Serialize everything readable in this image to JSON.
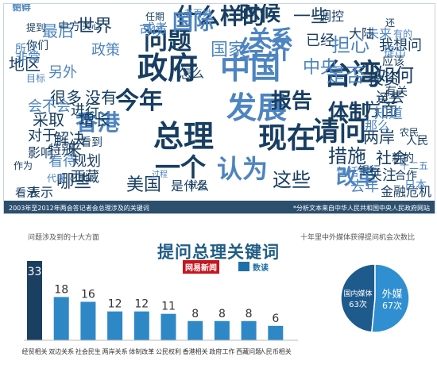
{
  "cloud": {
    "words": [
      {
        "t": "政府",
        "c": "#173e62"
      },
      {
        "t": "中国",
        "c": "#4d84c1"
      },
      {
        "t": "台湾",
        "c": "#173e62"
      },
      {
        "t": "发展",
        "c": "#4d84c1"
      },
      {
        "t": "总理",
        "c": "#173e62"
      },
      {
        "t": "现在",
        "c": "#173e62"
      },
      {
        "t": "今年",
        "c": "#173e62"
      },
      {
        "t": "请问",
        "c": "#173e62"
      },
      {
        "t": "问题",
        "c": "#173e62"
      },
      {
        "t": "经济",
        "c": "#4d84c1"
      },
      {
        "t": "一个",
        "c": "#173e62"
      },
      {
        "t": "认为",
        "c": "#4d84c1"
      },
      {
        "t": "香港",
        "c": "#4d84c1"
      },
      {
        "t": "关系",
        "c": "#4d84c1"
      },
      {
        "t": "什么样的",
        "c": "#173e62"
      },
      {
        "t": "国际",
        "c": "#4d84c1"
      },
      {
        "t": "时候",
        "c": "#173e62"
      },
      {
        "t": "国家",
        "c": "#4d84c1"
      },
      {
        "t": "是否",
        "c": "#4d84c1"
      },
      {
        "t": "如何",
        "c": "#173e62"
      },
      {
        "t": "报告",
        "c": "#173e62"
      },
      {
        "t": "改革",
        "c": "#4d84c1"
      },
      {
        "t": "措施",
        "c": "#173e62"
      },
      {
        "t": "这些",
        "c": "#173e62"
      },
      {
        "t": "方面",
        "c": "#173e62"
      },
      {
        "t": "中央",
        "c": "#4d84c1"
      },
      {
        "t": "两岸",
        "c": "#173e62"
      },
      {
        "t": "社会",
        "c": "#173e62"
      },
      {
        "t": "哪些",
        "c": "#173e62"
      },
      {
        "t": "美国",
        "c": "#173e62"
      },
      {
        "t": "很多",
        "c": "#173e62"
      },
      {
        "t": "没有",
        "c": "#173e62"
      },
      {
        "t": "采取",
        "c": "#173e62"
      },
      {
        "t": "增长",
        "c": "#173e62"
      },
      {
        "t": "解决",
        "c": "#173e62"
      },
      {
        "t": "另外",
        "c": "#4d84c1"
      },
      {
        "t": "世界",
        "c": "#173e62"
      },
      {
        "t": "政策",
        "c": "#4d84c1"
      },
      {
        "t": "我想问",
        "c": "#173e62"
      },
      {
        "t": "体制",
        "c": "#173e62"
      },
      {
        "t": "知道",
        "c": "#4d84c1"
      },
      {
        "t": "西藏",
        "c": "#173e62"
      },
      {
        "t": "看待",
        "c": "#4d84c1"
      },
      {
        "t": "规划",
        "c": "#173e62"
      },
      {
        "t": "进行",
        "c": "#173e62"
      },
      {
        "t": "是什么",
        "c": "#173e62"
      },
      {
        "t": "一些",
        "c": "#173e62"
      },
      {
        "t": "已经",
        "c": "#173e62"
      },
      {
        "t": "怎么",
        "c": "#173e62"
      },
      {
        "t": "地区",
        "c": "#173e62"
      },
      {
        "t": "可以",
        "c": "#4d84c1"
      },
      {
        "t": "就是",
        "c": "#173e62"
      },
      {
        "t": "金融危机",
        "c": "#173e62"
      },
      {
        "t": "投资",
        "c": "#173e62"
      },
      {
        "t": "去年",
        "c": "#4d84c1"
      },
      {
        "t": "人民",
        "c": "#173e62"
      },
      {
        "t": "银行",
        "c": "#173e62"
      },
      {
        "t": "关注",
        "c": "#173e62"
      },
      {
        "t": "过去",
        "c": "#173e62"
      },
      {
        "t": "有关",
        "c": "#173e62"
      },
      {
        "t": "看法",
        "c": "#173e62"
      },
      {
        "t": "表示",
        "c": "#173e62"
      },
      {
        "t": "会不会",
        "c": "#4d84c1"
      },
      {
        "t": "对于",
        "c": "#173e62"
      },
      {
        "t": "影响",
        "c": "#173e62"
      },
      {
        "t": "特别",
        "c": "#173e62"
      },
      {
        "t": "看到",
        "c": "#173e62"
      },
      {
        "t": "来",
        "c": "#173e62"
      },
      {
        "t": "未来",
        "c": "#4d84c1"
      },
      {
        "t": "那么",
        "c": "#4d84c1"
      },
      {
        "t": "新的",
        "c": "#173e62"
      },
      {
        "t": "合作",
        "c": "#173e62"
      },
      {
        "t": "提出",
        "c": "#4d84c1"
      },
      {
        "t": "应该",
        "c": "#173e62"
      },
      {
        "t": "调控",
        "c": "#173e62"
      },
      {
        "t": "大陆",
        "c": "#173e62"
      },
      {
        "t": "关于",
        "c": "#173e62"
      },
      {
        "t": "担心",
        "c": "#4d84c1"
      },
      {
        "t": "非常",
        "c": "#4d84c1"
      },
      {
        "t": "所以",
        "c": "#4d84c1"
      },
      {
        "t": "还",
        "c": "#173e62"
      },
      {
        "t": "有的",
        "c": "#4d84c1"
      },
      {
        "t": "目标",
        "c": "#4d84c1"
      },
      {
        "t": "或者",
        "c": "#4d84c1"
      },
      {
        "t": "最后",
        "c": "#4d84c1"
      },
      {
        "t": "中方",
        "c": "#173e62"
      },
      {
        "t": "提到",
        "c": "#173e62"
      },
      {
        "t": "你们",
        "c": "#173e62"
      },
      {
        "t": "关心",
        "c": "#173e62"
      },
      {
        "t": "任期",
        "c": "#173e62"
      },
      {
        "t": "老百姓",
        "c": "#4d84c1"
      },
      {
        "t": "包括",
        "c": "#4d84c1"
      },
      {
        "t": "十二五",
        "c": "#4d84c1"
      },
      {
        "t": "农民",
        "c": "#173e62"
      },
      {
        "t": "过程",
        "c": "#4d84c1"
      },
      {
        "t": "作为",
        "c": "#173e62"
      },
      {
        "t": "代表",
        "c": "#4d84c1"
      },
      {
        "t": "日本",
        "c": "#4d84c1"
      },
      {
        "t": "朝鲜",
        "c": "#4d84c1"
      },
      {
        "t": "觉得",
        "c": "#4d84c1"
      }
    ],
    "footer_left": "2003年至2012年两会答记者会总理涉及的关键词",
    "footer_right": "*分析文本来自中华人民共和国中央人民政府网站"
  },
  "title": "提问总理关键词",
  "bar_subtitle": "问题涉及到的十大方面",
  "pie_subtitle": "十年里中外媒体获得提问机会次数比",
  "logos": {
    "netease": "网易新闻",
    "shudu": "数读"
  },
  "colors": {
    "bar_top": "#1b3f61",
    "bar_other": "#2f88c6",
    "pie_domestic": "#1e5a8c",
    "pie_foreign": "#2f8fd0"
  },
  "chart_data": [
    {
      "type": "bar",
      "categories": [
        "经贸相关",
        "双边关系",
        "社会民生",
        "两岸关系",
        "体制改革",
        "公民权利",
        "香港相关",
        "政府工作",
        "西藏问题",
        "人民币相关"
      ],
      "values": [
        33,
        18,
        16,
        12,
        12,
        11,
        8,
        8,
        8,
        6
      ],
      "title": "问题涉及到的十大方面"
    },
    {
      "type": "pie",
      "labels": [
        "国内媒体",
        "外媒"
      ],
      "values": [
        63,
        67
      ],
      "value_labels": [
        "63次",
        "67次"
      ],
      "title": "十年里中外媒体获得提问机会次数比"
    }
  ]
}
